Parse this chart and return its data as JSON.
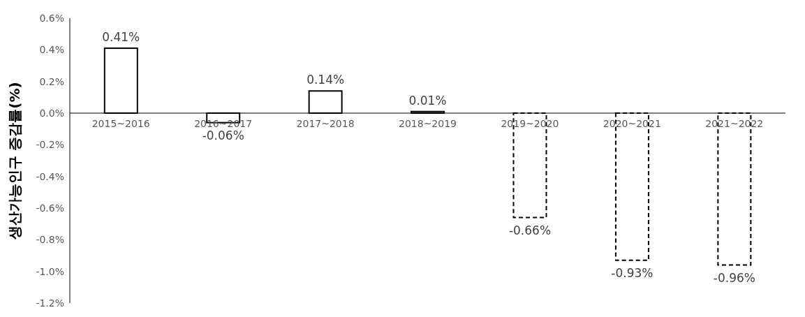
{
  "chart_data": {
    "type": "bar",
    "ylabel": "생산가능인구 증감률(%)",
    "categories": [
      "2015~2016",
      "2016~2017",
      "2017~2018",
      "2018~2019",
      "2019~2020",
      "2020~2021",
      "2021~2022"
    ],
    "stacked": true,
    "series": [
      {
        "color": "#000000",
        "line_style": "solid",
        "values": [
          0.41,
          -0.06,
          0.14,
          0.01,
          null,
          null,
          null
        ],
        "value_labels": [
          "0.41%",
          "-0.06%",
          "0.14%",
          "0.01%",
          null,
          null,
          null
        ]
      },
      {
        "color": "#000000",
        "line_style": "dashed",
        "values": [
          null,
          null,
          null,
          null,
          -0.66,
          -0.93,
          -0.96
        ],
        "value_labels": [
          null,
          null,
          null,
          null,
          "-0.66%",
          "-0.93%",
          "-0.96%"
        ]
      }
    ],
    "ylim": [
      -1.2,
      0.6
    ],
    "yticks": [
      {
        "value": 0.6,
        "label": "0.6%"
      },
      {
        "value": 0.4,
        "label": "0.4%"
      },
      {
        "value": 0.2,
        "label": "0.2%"
      },
      {
        "value": 0,
        "label": "0.0%"
      },
      {
        "value": -0.2,
        "label": "-0.2%"
      },
      {
        "value": -0.4,
        "label": "-0.4%"
      },
      {
        "value": -0.6,
        "label": "-0.6%"
      },
      {
        "value": -0.8,
        "label": "-0.8%"
      },
      {
        "value": -1.0,
        "label": "-1.0%"
      },
      {
        "value": -1.2,
        "label": "-1.2%"
      }
    ],
    "grid": false,
    "legend": false
  }
}
